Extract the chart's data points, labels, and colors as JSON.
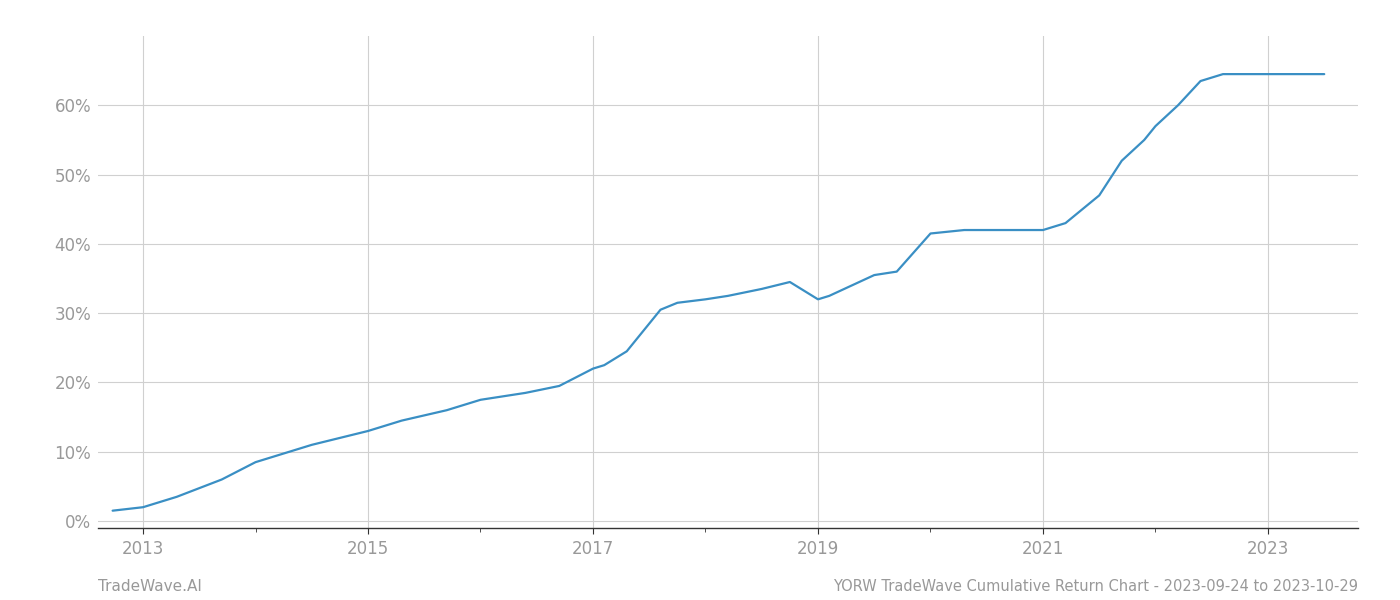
{
  "title": "YORW TradeWave Cumulative Return Chart - 2023-09-24 to 2023-10-29",
  "footnote_left": "TradeWave.AI",
  "line_color": "#3a8fc4",
  "background_color": "#ffffff",
  "grid_color": "#d0d0d0",
  "x_years": [
    2012.73,
    2013.0,
    2013.3,
    2013.7,
    2014.0,
    2014.5,
    2015.0,
    2015.3,
    2015.7,
    2016.0,
    2016.4,
    2016.7,
    2017.0,
    2017.1,
    2017.3,
    2017.6,
    2017.75,
    2018.0,
    2018.2,
    2018.5,
    2018.75,
    2019.0,
    2019.1,
    2019.3,
    2019.5,
    2019.7,
    2020.0,
    2020.3,
    2020.5,
    2020.75,
    2021.0,
    2021.2,
    2021.5,
    2021.7,
    2021.9,
    2022.0,
    2022.2,
    2022.4,
    2022.6,
    2022.75,
    2023.0,
    2023.5
  ],
  "y_values": [
    1.5,
    2.0,
    3.5,
    6.0,
    8.5,
    11.0,
    13.0,
    14.5,
    16.0,
    17.5,
    18.5,
    19.5,
    22.0,
    22.5,
    24.5,
    30.5,
    31.5,
    32.0,
    32.5,
    33.5,
    34.5,
    32.0,
    32.5,
    34.0,
    35.5,
    36.0,
    41.5,
    42.0,
    42.0,
    42.0,
    42.0,
    43.0,
    47.0,
    52.0,
    55.0,
    57.0,
    60.0,
    63.5,
    64.5,
    64.5,
    64.5,
    64.5
  ],
  "xlim": [
    2012.6,
    2023.8
  ],
  "ylim": [
    -1,
    70
  ],
  "yticks": [
    0,
    10,
    20,
    30,
    40,
    50,
    60
  ],
  "xticks": [
    2013,
    2015,
    2017,
    2019,
    2021,
    2023
  ],
  "tick_label_color": "#999999",
  "axis_color": "#333333",
  "line_width": 1.6,
  "title_fontsize": 10.5,
  "tick_fontsize": 12,
  "footnote_fontsize": 11
}
